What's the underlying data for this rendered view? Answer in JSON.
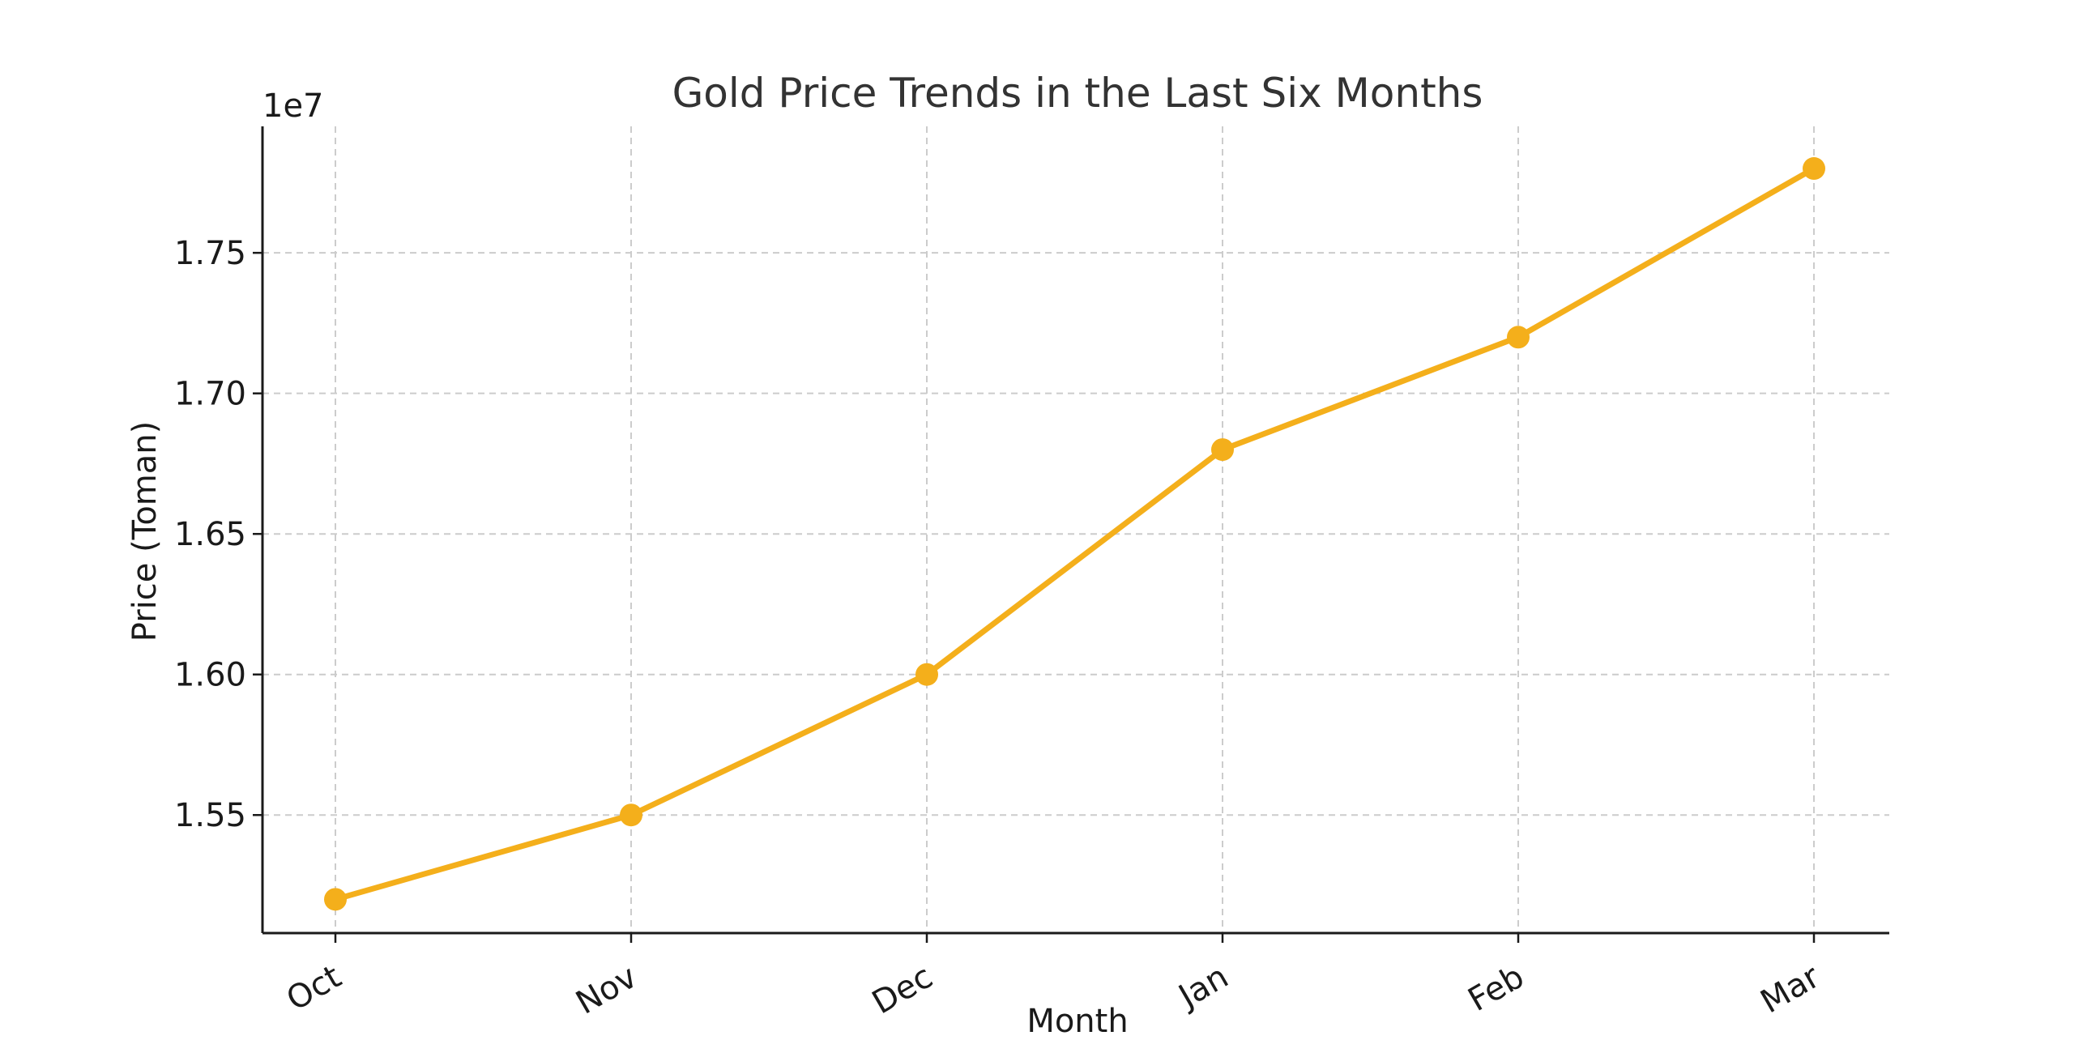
{
  "chart_data": {
    "type": "line",
    "title": "Gold Price Trends in the Last Six Months",
    "xlabel": "Month",
    "ylabel": "Price (Toman)",
    "y_offset_label": "1e7",
    "categories": [
      "Oct",
      "Nov",
      "Dec",
      "Jan",
      "Feb",
      "Mar"
    ],
    "series": [
      {
        "values": [
          15200000,
          15500000,
          16000000,
          16800000,
          17200000,
          17800000
        ],
        "color": "#F4AF1B"
      }
    ],
    "ylim": [
      15080000,
      17950000
    ],
    "yticks": [
      15500000,
      16000000,
      16500000,
      17000000,
      17500000
    ],
    "ytick_labels": [
      "1.55",
      "1.60",
      "1.65",
      "1.70",
      "1.75"
    ],
    "grid": true,
    "legend": "none",
    "axis_color": "#1a1a1a",
    "grid_color": "#cccccc"
  }
}
